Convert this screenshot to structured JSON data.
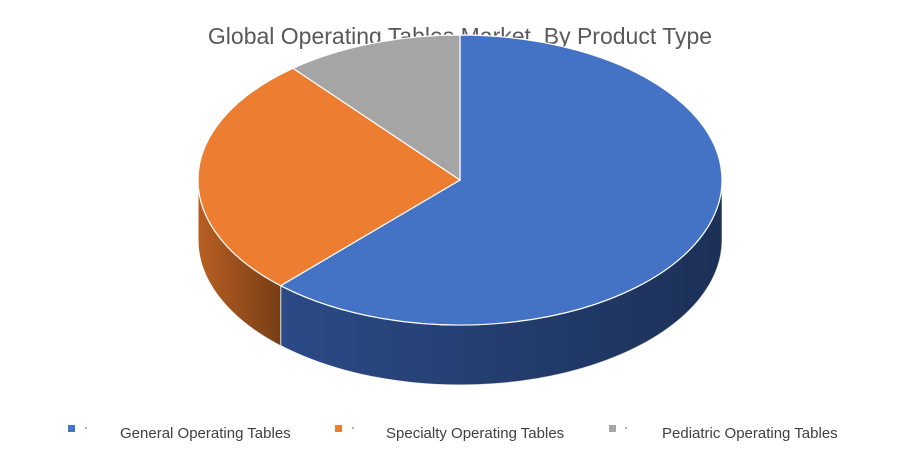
{
  "chart_data": {
    "type": "pie",
    "style": "3d",
    "title": "Global Operating Tables Market, By Product Type",
    "slices": [
      {
        "label": "General Operating Tables",
        "value": 62,
        "color": "#4472C4",
        "side_color": "#2B4A86"
      },
      {
        "label": "Specialty Operating Tables",
        "value": 27,
        "color": "#ED7D31",
        "side_color": "#B85F22"
      },
      {
        "label": "Pediatric Operating Tables",
        "value": 11,
        "color": "#A5A5A5",
        "side_color": "#7F7F7F"
      }
    ],
    "legend_position": "bottom",
    "legend_bullet": "·"
  }
}
